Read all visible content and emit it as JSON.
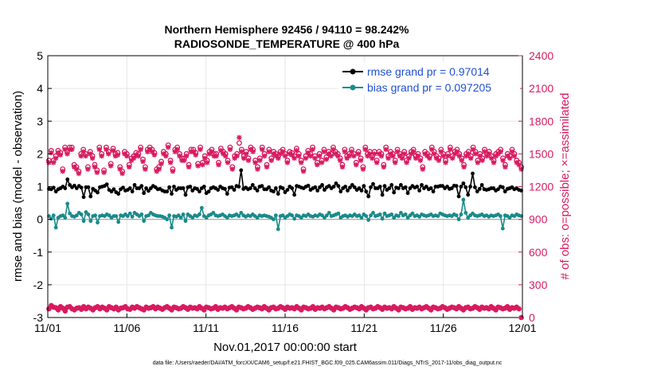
{
  "chart_data": {
    "type": "line",
    "title_line1": "Northern Hemisphere 92456 / 94110 = 98.242%",
    "title_line2": "RADIOSONDE_TEMPERATURE @ 400 hPa",
    "xlabel": "Nov.01,2017 00:00:00 start",
    "ylabel_left": "rmse and bias (model - observation)",
    "ylabel_right": "# of obs: o=possible; ×=assimilated",
    "footer": "data file: /Users/raeder/DAI/ATM_forcXX/CAM6_setup/f.e21.FHIST_BGC.f09_025.CAM6assim.011/Diags_NTrS_2017-11/obs_diag_output.nc",
    "x_ticks": [
      "11/01",
      "11/06",
      "11/11",
      "11/16",
      "11/21",
      "11/26",
      "12/01"
    ],
    "xlim": [
      0,
      30
    ],
    "ylim_left": [
      -3,
      5
    ],
    "yticks_left": [
      "-3",
      "-2",
      "-1",
      "0",
      "1",
      "2",
      "3",
      "4",
      "5"
    ],
    "ylim_right": [
      0,
      2400
    ],
    "yticks_right": [
      "0",
      "300",
      "600",
      "900",
      "1200",
      "1500",
      "1800",
      "2100",
      "2400"
    ],
    "legend": [
      {
        "name": "rmse grand pr = 0.97014",
        "color": "#000000"
      },
      {
        "name": "bias grand pr = 0.097205",
        "color": "#1a8a8a"
      }
    ],
    "colors": {
      "rmse": "#000000",
      "bias": "#1a8a8a",
      "obs": "#d81b60",
      "legend_text": "#1f4fd6",
      "zero_line": "#aaaaaa"
    },
    "rmse": [
      0.93,
      0.92,
      0.97,
      0.85,
      0.92,
      0.95,
      1.0,
      0.95,
      1.22,
      1.05,
      0.98,
      1.03,
      0.95,
      1.02,
      0.97,
      0.68,
      0.98,
      0.98,
      0.7,
      0.93,
      0.88,
      0.82,
      0.98,
      1.0,
      1.02,
      1.07,
      0.9,
      0.85,
      0.92,
      0.83,
      0.78,
      0.92,
      0.97,
      0.88,
      0.9,
      0.95,
      0.85,
      1.05,
      0.95,
      0.95,
      1.02,
      0.8,
      0.95,
      0.87,
      0.95,
      1.02,
      0.98,
      0.92,
      0.93,
      0.88,
      0.85,
      0.85,
      0.98,
      0.78,
      1.0,
      0.9,
      0.95,
      0.95,
      0.95,
      0.75,
      0.98,
      1.0,
      0.88,
      0.95,
      0.93,
      0.85,
      0.95,
      1.0,
      0.8,
      0.85,
      0.95,
      0.98,
      0.95,
      0.9,
      1.0,
      0.95,
      0.93,
      0.78,
      0.97,
      0.98,
      0.9,
      1.02,
      1.0,
      1.5,
      0.93,
      0.97,
      0.92,
      0.95,
      1.05,
      0.95,
      0.88,
      1.0,
      1.02,
      0.92,
      0.92,
      0.98,
      0.88,
      0.85,
      0.95,
      0.78,
      0.98,
      0.95,
      0.83,
      0.9,
      1.0,
      0.95,
      0.75,
      1.02,
      1.0,
      0.97,
      0.95,
      1.0,
      1.03,
      0.9,
      0.95,
      0.98,
      0.88,
      0.98,
      1.05,
      0.9,
      0.98,
      1.02,
      0.95,
      1.0,
      1.1,
      1.02,
      0.85,
      0.95,
      1.0,
      0.88,
      0.97,
      1.05,
      0.98,
      0.9,
      0.95,
      0.88,
      1.02,
      0.85,
      0.7,
      0.98,
      1.08,
      0.95,
      0.95,
      1.0,
      0.75,
      1.02,
      0.9,
      0.95,
      1.05,
      0.82,
      0.97,
      0.95,
      1.05,
      0.95,
      0.98,
      0.8,
      0.95,
      1.02,
      0.97,
      1.0,
      0.88,
      1.05,
      0.95,
      1.0,
      0.92,
      0.95,
      0.85,
      1.0,
      1.0,
      1.02,
      1.02,
      0.95,
      1.0,
      0.93,
      0.95,
      1.03,
      1.02,
      0.7,
      1.0,
      1.1,
      0.98,
      0.75,
      1.0,
      1.4,
      0.98,
      0.85,
      0.93,
      1.05,
      0.92,
      0.9,
      0.92,
      0.95,
      0.95,
      0.88,
      0.92,
      1.0,
      0.98,
      0.85,
      0.93,
      0.95,
      0.98,
      0.92,
      0.95,
      0.9,
      0.88
    ],
    "bias": [
      0.1,
      0.02,
      0.12,
      -0.25,
      0.05,
      0.1,
      0.12,
      0.05,
      0.48,
      0.18,
      0.1,
      0.08,
      0.12,
      0.2,
      0.15,
      -0.05,
      0.22,
      0.15,
      -0.05,
      0.1,
      0.12,
      -0.1,
      0.1,
      0.12,
      0.1,
      0.15,
      0.12,
      0.05,
      0.1,
      0.1,
      -0.08,
      0.12,
      0.1,
      0.15,
      0.1,
      0.18,
      0.08,
      0.2,
      0.15,
      0.1,
      0.15,
      -0.05,
      0.1,
      0.12,
      0.2,
      0.15,
      0.12,
      0.1,
      0.1,
      0.08,
      0.05,
      0.0,
      0.12,
      -0.25,
      0.1,
      0.08,
      0.12,
      0.05,
      0.15,
      -0.05,
      0.15,
      0.1,
      0.05,
      0.12,
      0.1,
      0.15,
      0.35,
      0.1,
      0.05,
      0.12,
      0.15,
      0.2,
      0.12,
      0.1,
      0.12,
      0.15,
      0.1,
      0.05,
      0.12,
      0.1,
      0.12,
      0.15,
      0.1,
      0.2,
      0.12,
      0.08,
      0.12,
      0.1,
      0.15,
      0.1,
      0.05,
      0.12,
      0.1,
      0.12,
      0.1,
      0.08,
      0.05,
      0.0,
      0.12,
      -0.3,
      0.1,
      0.12,
      0.05,
      0.1,
      0.15,
      0.12,
      0.02,
      0.12,
      0.1,
      0.05,
      0.12,
      0.1,
      0.15,
      0.1,
      0.08,
      0.12,
      0.1,
      0.15,
      0.12,
      0.05,
      0.12,
      0.2,
      0.1,
      0.12,
      0.15,
      0.18,
      0.05,
      0.1,
      0.12,
      0.08,
      0.12,
      0.1,
      0.15,
      0.1,
      0.12,
      0.05,
      0.15,
      0.1,
      -0.02,
      0.12,
      0.2,
      0.1,
      0.12,
      0.15,
      0.02,
      0.18,
      0.1,
      0.12,
      0.15,
      0.05,
      0.12,
      0.1,
      0.2,
      0.12,
      0.15,
      0.05,
      0.12,
      0.18,
      0.1,
      0.12,
      0.08,
      0.15,
      0.12,
      0.1,
      0.12,
      0.15,
      0.1,
      0.12,
      0.1,
      0.18,
      0.15,
      0.12,
      0.1,
      0.12,
      0.1,
      0.15,
      0.12,
      0.0,
      0.15,
      0.6,
      0.2,
      0.05,
      0.12,
      0.18,
      0.12,
      0.1,
      0.12,
      0.15,
      0.1,
      0.12,
      0.08,
      0.12,
      0.1,
      0.12,
      0.15,
      0.1,
      -0.28,
      0.12,
      0.1,
      0.05,
      0.12,
      0.1,
      0.15,
      0.12,
      0.1
    ],
    "obs_possible": [
      1440,
      1530,
      1440,
      1480,
      1530,
      1510,
      1360,
      1560,
      1520,
      1560,
      1560,
      1400,
      1380,
      1340,
      1500,
      1540,
      1500,
      1380,
      1520,
      1480,
      1400,
      1350,
      1560,
      1500,
      1350,
      1560,
      1520,
      1410,
      1550,
      1500,
      1510,
      1380,
      1340,
      1520,
      1500,
      1400,
      1460,
      1480,
      1510,
      1500,
      1560,
      1450,
      1380,
      1540,
      1560,
      1540,
      1510,
      1360,
      1380,
      1430,
      1520,
      1500,
      1580,
      1440,
      1360,
      1540,
      1560,
      1500,
      1460,
      1460,
      1500,
      1400,
      1540,
      1540,
      1510,
      1410,
      1560,
      1420,
      1480,
      1440,
      1520,
      1540,
      1500,
      1500,
      1420,
      1550,
      1520,
      1500,
      1440,
      1560,
      1380,
      1480,
      1500,
      1600,
      1540,
      1480,
      1520,
      1460,
      1560,
      1540,
      1440,
      1380,
      1460,
      1560,
      1500,
      1400,
      1540,
      1460,
      1520,
      1500,
      1480,
      1520,
      1540,
      1500,
      1440,
      1520,
      1510,
      1480,
      1550,
      1500,
      1440,
      1360,
      1480,
      1530,
      1500,
      1560,
      1480,
      1420,
      1500,
      1440,
      1540,
      1470,
      1520,
      1500,
      1560,
      1520,
      1500,
      1460,
      1400,
      1540,
      1480,
      1500,
      1540,
      1500,
      1420,
      1520,
      1460,
      1380,
      1560,
      1500,
      1520,
      1480,
      1520,
      1440,
      1520,
      1500,
      1400,
      1560,
      1480,
      1520,
      1500,
      1440,
      1540,
      1500,
      1480,
      1520,
      1440,
      1480,
      1520,
      1540,
      1480,
      1500,
      1460,
      1380,
      1520,
      1500,
      1480,
      1560,
      1520,
      1480,
      1460,
      1540,
      1500,
      1440,
      1500,
      1560,
      1480,
      1520,
      1540,
      1500,
      1460,
      1400,
      1500,
      1520,
      1480,
      1560,
      1520,
      1440,
      1500,
      1460,
      1540,
      1500,
      1520,
      1480,
      1440,
      1500,
      1520,
      1540,
      1460,
      1400,
      1500,
      1480,
      1540,
      1500,
      1440,
      1420,
      1380
    ],
    "obs_assimilated": [
      1420,
      1510,
      1420,
      1460,
      1510,
      1490,
      1340,
      1540,
      1500,
      1540,
      1540,
      1380,
      1360,
      1320,
      1480,
      1520,
      1480,
      1360,
      1500,
      1460,
      1380,
      1330,
      1540,
      1480,
      1330,
      1540,
      1500,
      1390,
      1530,
      1480,
      1490,
      1360,
      1320,
      1500,
      1480,
      1380,
      1440,
      1460,
      1490,
      1480,
      1540,
      1430,
      1360,
      1520,
      1540,
      1520,
      1490,
      1340,
      1360,
      1410,
      1500,
      1480,
      1560,
      1420,
      1340,
      1520,
      1540,
      1480,
      1440,
      1440,
      1480,
      1380,
      1520,
      1520,
      1490,
      1390,
      1540,
      1400,
      1460,
      1420,
      1500,
      1520,
      1480,
      1480,
      1400,
      1530,
      1500,
      1480,
      1420,
      1540,
      1360,
      1460,
      1480,
      1650,
      1520,
      1460,
      1500,
      1440,
      1540,
      1520,
      1420,
      1360,
      1440,
      1540,
      1480,
      1380,
      1520,
      1440,
      1500,
      1480,
      1460,
      1500,
      1520,
      1480,
      1420,
      1500,
      1490,
      1460,
      1530,
      1480,
      1420,
      1340,
      1460,
      1510,
      1480,
      1540,
      1460,
      1400,
      1480,
      1420,
      1520,
      1450,
      1500,
      1480,
      1540,
      1500,
      1480,
      1440,
      1380,
      1520,
      1460,
      1480,
      1520,
      1480,
      1400,
      1500,
      1440,
      1360,
      1540,
      1480,
      1500,
      1460,
      1500,
      1420,
      1500,
      1480,
      1380,
      1540,
      1460,
      1500,
      1480,
      1420,
      1520,
      1480,
      1460,
      1500,
      1420,
      1460,
      1500,
      1520,
      1460,
      1480,
      1440,
      1360,
      1500,
      1480,
      1460,
      1540,
      1500,
      1460,
      1440,
      1520,
      1480,
      1420,
      1480,
      1540,
      1460,
      1500,
      1520,
      1480,
      1440,
      1380,
      1480,
      1500,
      1460,
      1540,
      1500,
      1420,
      1480,
      1440,
      1520,
      1480,
      1500,
      1460,
      1420,
      1480,
      1500,
      1520,
      1440,
      1380,
      1480,
      1460,
      1520,
      1480,
      1420,
      1400,
      1360
    ],
    "obs_low_possible": [
      80,
      110,
      95,
      90,
      70,
      100,
      85,
      60,
      95,
      100,
      80,
      70,
      85,
      90,
      75,
      100,
      80,
      95,
      85,
      70,
      90,
      100,
      80,
      95,
      85,
      70,
      100,
      90,
      80,
      95,
      70,
      85,
      90,
      100,
      80,
      75,
      95,
      85,
      100,
      90,
      80,
      70,
      95,
      85,
      90,
      100,
      80,
      95,
      85,
      75,
      90,
      100,
      85,
      70,
      95,
      90,
      80,
      85,
      100,
      90,
      75,
      95,
      85,
      90,
      80,
      100,
      85,
      70,
      95,
      90,
      80,
      85,
      100,
      75,
      90,
      85,
      95,
      80,
      90,
      100,
      85,
      70,
      95,
      90,
      80,
      85,
      100,
      90,
      75,
      85,
      95,
      90,
      80,
      100,
      85,
      70,
      90,
      95,
      80,
      85,
      100,
      90,
      75,
      95,
      85,
      90,
      80,
      100,
      85,
      70,
      95,
      90,
      80,
      85,
      100,
      75,
      90,
      85,
      95,
      80,
      90,
      100,
      85,
      70,
      95,
      90,
      80,
      85,
      100,
      90,
      75,
      85,
      95,
      90,
      80,
      100,
      85,
      70,
      90,
      95,
      80,
      85,
      100,
      90,
      75,
      95,
      85,
      90,
      80,
      100,
      85,
      70,
      95,
      90,
      80,
      85,
      100,
      75,
      90,
      85,
      95,
      80,
      90,
      100,
      85,
      70,
      95,
      90,
      80,
      85,
      100,
      90,
      75,
      85,
      95,
      90,
      80,
      100,
      85,
      70,
      90,
      95,
      80,
      85,
      100,
      90,
      75,
      95,
      85,
      90,
      80,
      100,
      85,
      70,
      95,
      90,
      80,
      85,
      100,
      75,
      90,
      85,
      95,
      80,
      0
    ]
  }
}
